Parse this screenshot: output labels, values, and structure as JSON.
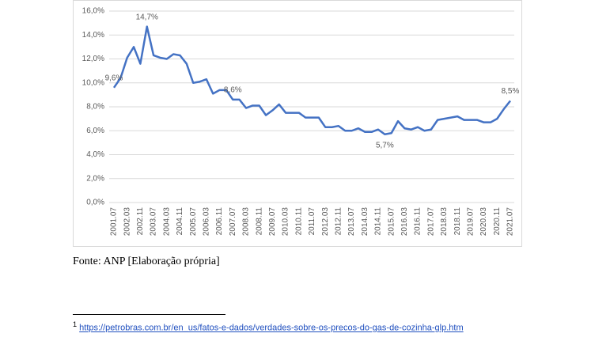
{
  "chart_data": {
    "type": "line",
    "color": "#4472c4",
    "categories": [
      "2001.07",
      null,
      "2002.03",
      null,
      "2002.11",
      null,
      "2003.07",
      null,
      "2004.03",
      null,
      "2004.11",
      null,
      "2005.07",
      null,
      "2006.03",
      null,
      "2006.11",
      null,
      "2007.07",
      null,
      "2008.03",
      null,
      "2008.11",
      null,
      "2009.07",
      null,
      "2010.03",
      null,
      "2010.11",
      null,
      "2011.07",
      null,
      "2012.03",
      null,
      "2012.11",
      null,
      "2013.07",
      null,
      "2014.03",
      null,
      "2014.11",
      null,
      "2015.07",
      null,
      "2016.03",
      null,
      "2016.11",
      null,
      "2017.07",
      null,
      "2018.03",
      null,
      "2018.11",
      null,
      "2019.07",
      null,
      "2020.03",
      null,
      "2020.11",
      null,
      "2021.07"
    ],
    "values": [
      9.6,
      10.4,
      12.1,
      13.0,
      11.6,
      14.7,
      12.3,
      12.1,
      12.0,
      12.4,
      12.3,
      11.6,
      10.0,
      10.1,
      10.3,
      9.1,
      9.4,
      9.4,
      8.6,
      8.6,
      7.9,
      8.1,
      8.1,
      7.3,
      7.7,
      8.2,
      7.5,
      7.5,
      7.5,
      7.1,
      7.1,
      7.1,
      6.3,
      6.3,
      6.4,
      6.0,
      6.0,
      6.2,
      5.9,
      5.9,
      6.1,
      5.7,
      5.8,
      6.8,
      6.2,
      6.1,
      6.3,
      6.0,
      6.1,
      6.9,
      7.0,
      7.1,
      7.2,
      6.9,
      6.9,
      6.9,
      6.7,
      6.7,
      7.0,
      7.8,
      8.5
    ],
    "value_labels": [
      "9,6%",
      null,
      null,
      null,
      null,
      "14,7%",
      null,
      null,
      null,
      null,
      null,
      null,
      null,
      null,
      null,
      null,
      null,
      null,
      "8,6%",
      null,
      null,
      null,
      null,
      null,
      null,
      null,
      null,
      null,
      null,
      null,
      null,
      null,
      null,
      null,
      null,
      null,
      null,
      null,
      null,
      null,
      null,
      "5,7%",
      null,
      null,
      null,
      null,
      null,
      null,
      null,
      null,
      null,
      null,
      null,
      null,
      null,
      null,
      null,
      null,
      null,
      null,
      "8,5%"
    ],
    "ylim": [
      0,
      16
    ],
    "yticks": [
      {
        "value": 0,
        "label": "0,0%"
      },
      {
        "value": 2,
        "label": "2,0%"
      },
      {
        "value": 4,
        "label": "4,0%"
      },
      {
        "value": 6,
        "label": "6,0%"
      },
      {
        "value": 8,
        "label": "8,0%"
      },
      {
        "value": 10,
        "label": "10,0%"
      },
      {
        "value": 12,
        "label": "12,0%"
      },
      {
        "value": 14,
        "label": "14,0%"
      },
      {
        "value": 16,
        "label": "16,0%"
      }
    ],
    "grid": true
  },
  "source": "Fonte: ANP [Elaboração própria]",
  "footnote": {
    "marker": "1",
    "link": "https://petrobras.com.br/en_us/fatos-e-dados/verdades-sobre-os-precos-do-gas-de-cozinha-glp.htm"
  }
}
